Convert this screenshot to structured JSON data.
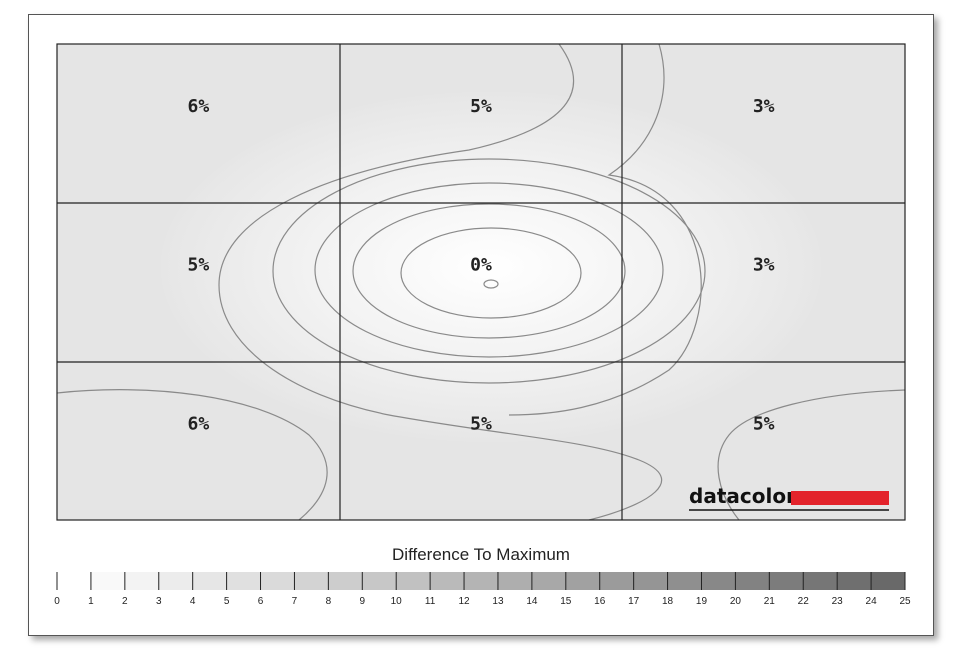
{
  "chart_data": {
    "type": "heatmap",
    "rows": 3,
    "cols": 3,
    "cells": [
      [
        "6%",
        "5%",
        "3%"
      ],
      [
        "5%",
        "0%",
        "3%"
      ],
      [
        "6%",
        "5%",
        "5%"
      ]
    ],
    "values": [
      [
        6,
        5,
        3
      ],
      [
        5,
        0,
        3
      ],
      [
        6,
        5,
        5
      ]
    ],
    "legend": {
      "title": "Difference To Maximum",
      "ticks": [
        "0",
        "1",
        "2",
        "3",
        "4",
        "5",
        "6",
        "7",
        "8",
        "9",
        "10",
        "11",
        "12",
        "13",
        "14",
        "15",
        "16",
        "17",
        "18",
        "19",
        "20",
        "21",
        "22",
        "23",
        "24",
        "25"
      ],
      "range": [
        0,
        25
      ]
    }
  },
  "brand": {
    "name": "datacolor",
    "accent_color": "#e3232b"
  }
}
